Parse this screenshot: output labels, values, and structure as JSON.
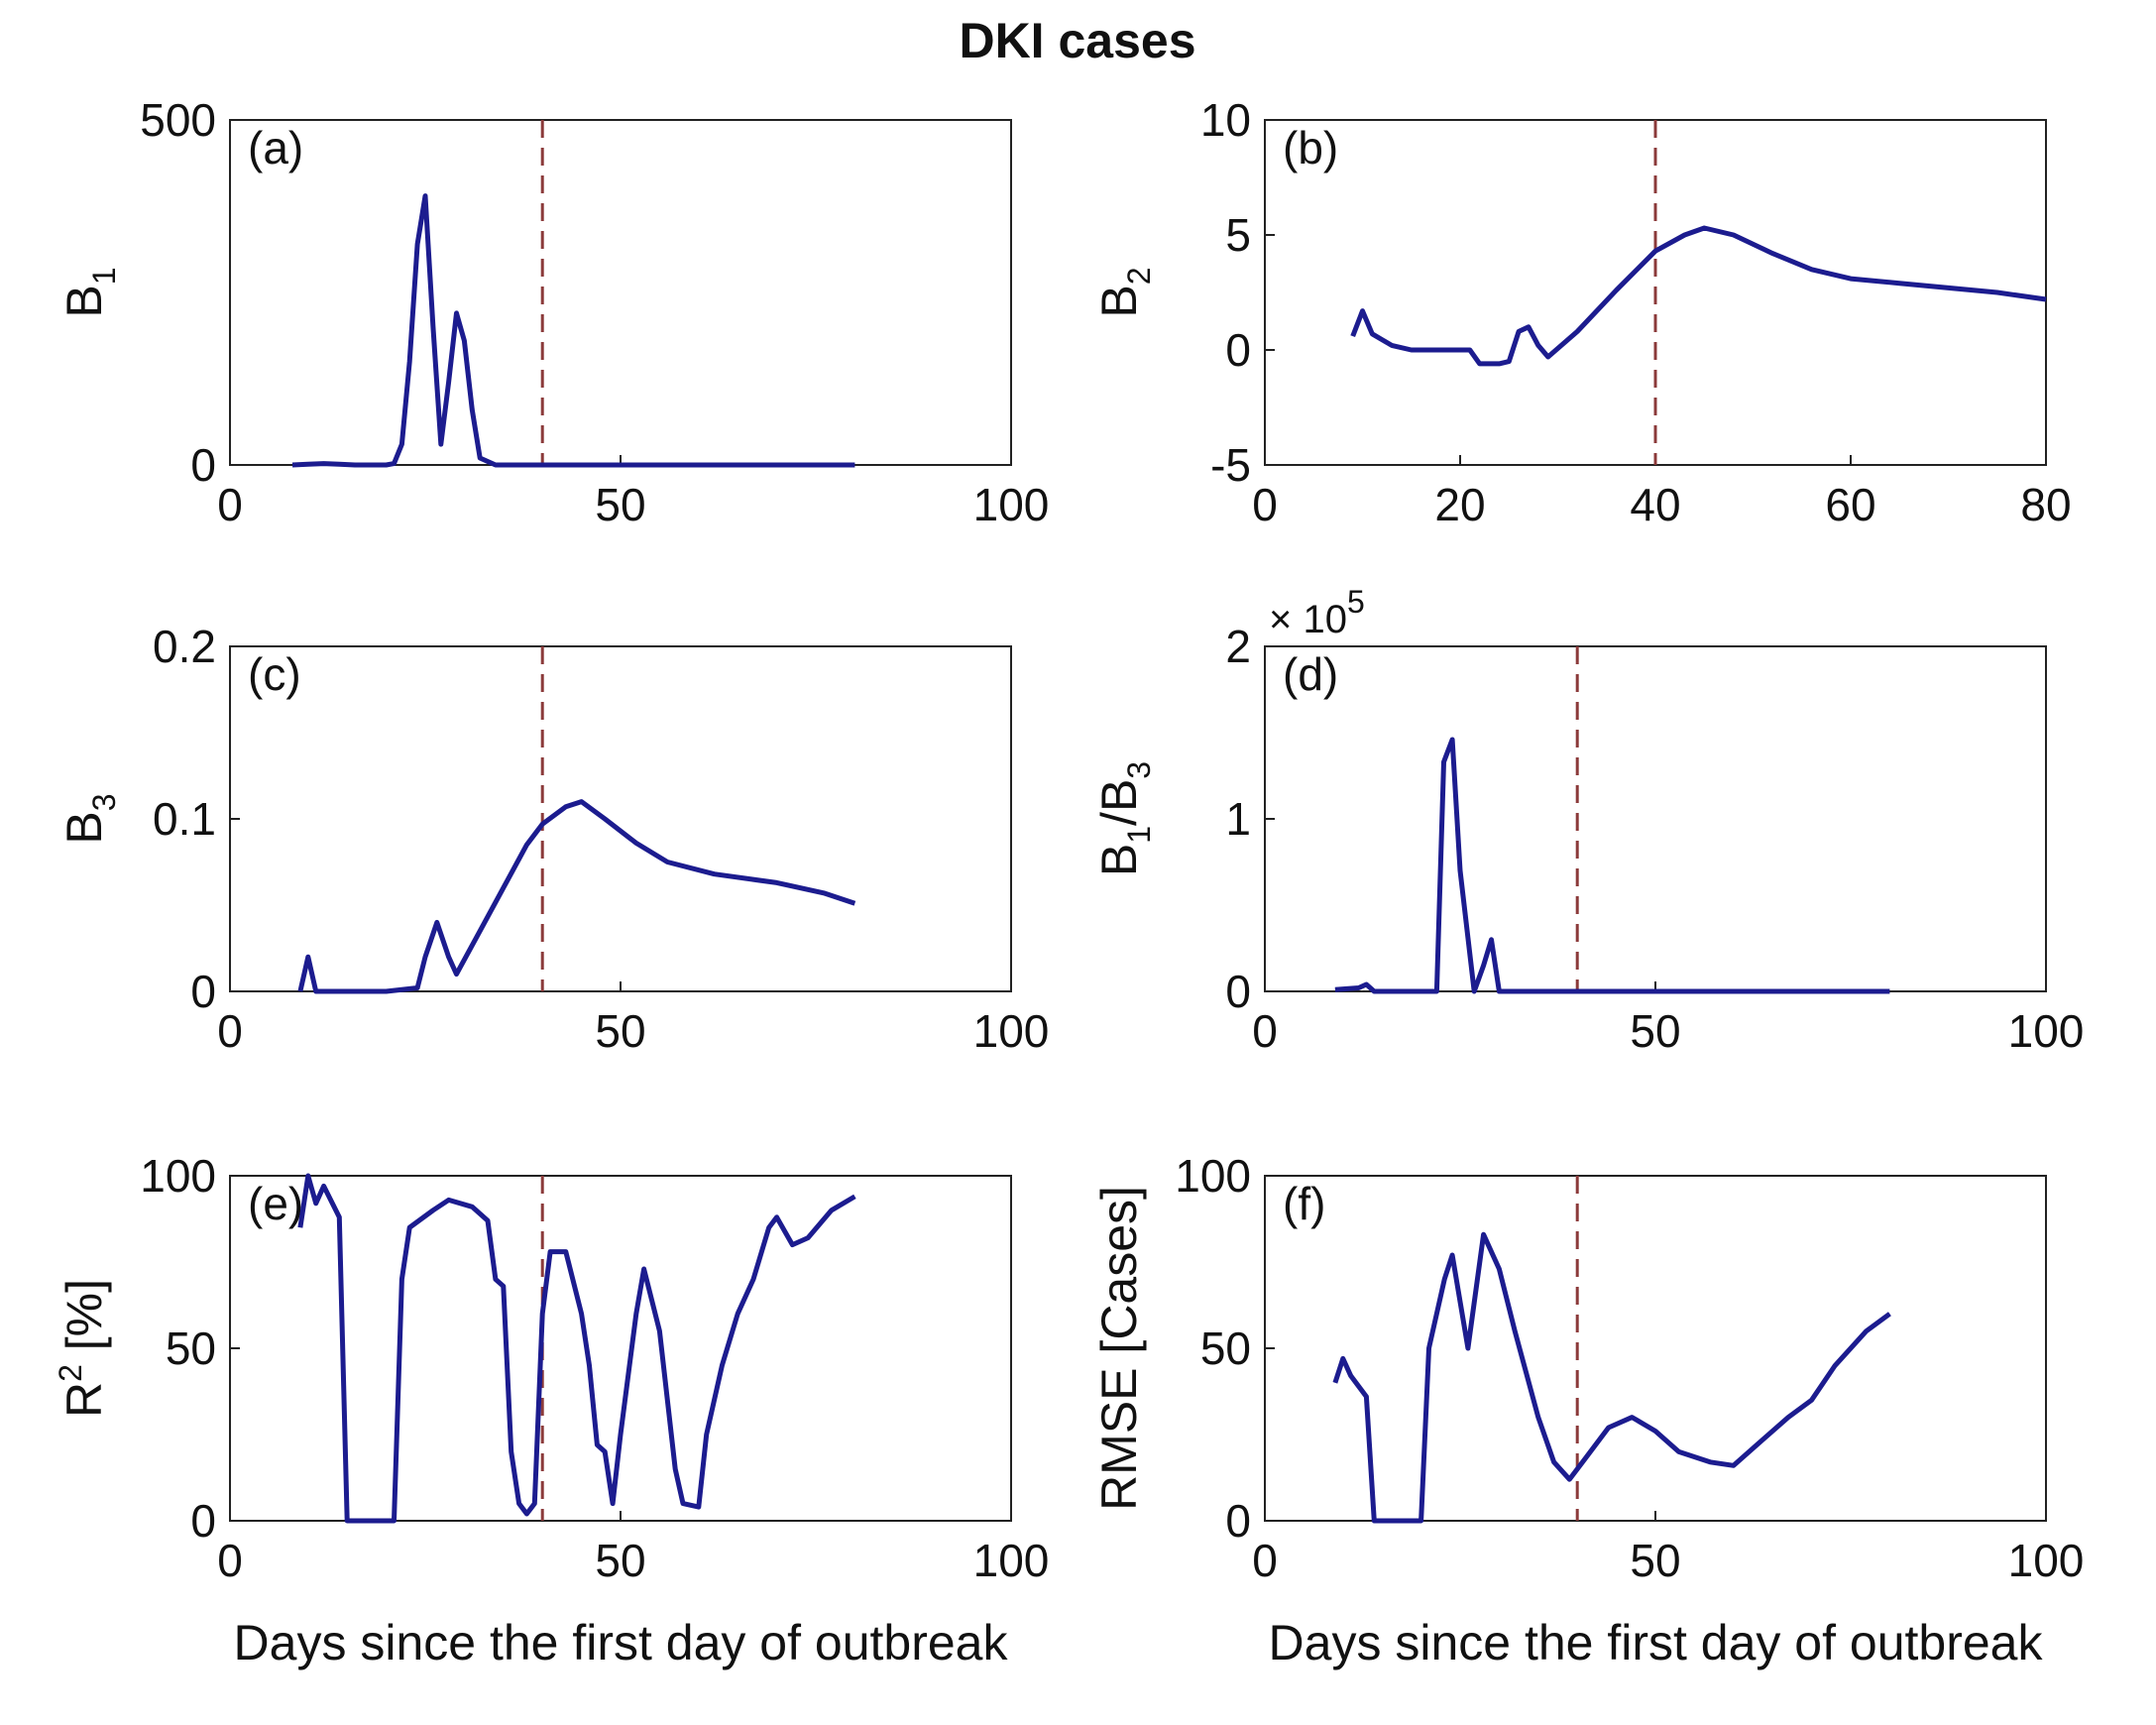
{
  "title": "DKI cases",
  "chart_data": [
    {
      "type": "line",
      "annotation": "(a)",
      "ylabel": [
        {
          "text": "B"
        },
        {
          "sub": "1"
        }
      ],
      "xlim": [
        0,
        100
      ],
      "xticks": [
        0,
        50,
        100
      ],
      "ylim": [
        0,
        500
      ],
      "yticks": [
        0,
        500
      ],
      "vline": 40,
      "series": [
        {
          "color": "#1c1c8f",
          "x": [
            8,
            10,
            12,
            14,
            16,
            18,
            20,
            21,
            22,
            23,
            24,
            25,
            26,
            27,
            28,
            29,
            30,
            31,
            32,
            34,
            40,
            50,
            60,
            70,
            80
          ],
          "values": [
            0,
            1,
            2,
            1,
            0,
            0,
            0,
            2,
            30,
            150,
            320,
            390,
            200,
            30,
            120,
            220,
            180,
            80,
            10,
            0,
            0,
            0,
            0,
            0,
            0
          ]
        }
      ]
    },
    {
      "type": "line",
      "annotation": "(b)",
      "ylabel": [
        {
          "text": "B"
        },
        {
          "sub": "2"
        }
      ],
      "xlim": [
        0,
        80
      ],
      "xticks": [
        0,
        20,
        40,
        60,
        80
      ],
      "ylim": [
        -5,
        10
      ],
      "yticks": [
        -5,
        0,
        5,
        10
      ],
      "vline": 40,
      "series": [
        {
          "color": "#1c1c8f",
          "x": [
            9,
            10,
            11,
            13,
            15,
            18,
            21,
            22,
            24,
            25,
            26,
            27,
            28,
            29,
            32,
            36,
            40,
            43,
            45,
            48,
            52,
            56,
            60,
            65,
            70,
            75,
            80
          ],
          "values": [
            0.6,
            1.7,
            0.7,
            0.2,
            0,
            0,
            0,
            -0.6,
            -0.6,
            -0.5,
            0.8,
            1.0,
            0.2,
            -0.3,
            0.8,
            2.6,
            4.3,
            5.0,
            5.3,
            5.0,
            4.2,
            3.5,
            3.1,
            2.9,
            2.7,
            2.5,
            2.2
          ]
        }
      ]
    },
    {
      "type": "line",
      "annotation": "(c)",
      "ylabel": [
        {
          "text": "B"
        },
        {
          "sub": "3"
        }
      ],
      "xlim": [
        0,
        100
      ],
      "xticks": [
        0,
        50,
        100
      ],
      "ylim": [
        0,
        0.2
      ],
      "yticks": [
        0,
        0.1,
        0.2
      ],
      "vline": 40,
      "series": [
        {
          "color": "#1c1c8f",
          "x": [
            9,
            10,
            11,
            14,
            20,
            24,
            25,
            26.5,
            28,
            29,
            32,
            35,
            38,
            40,
            43,
            45,
            48,
            52,
            56,
            62,
            70,
            76,
            80
          ],
          "values": [
            0,
            0.02,
            0,
            0,
            0,
            0.002,
            0.02,
            0.04,
            0.02,
            0.01,
            0.035,
            0.06,
            0.085,
            0.097,
            0.107,
            0.11,
            0.1,
            0.086,
            0.075,
            0.068,
            0.063,
            0.057,
            0.051
          ]
        }
      ]
    },
    {
      "type": "line",
      "annotation": "(d)",
      "ylabel": [
        {
          "text": "B"
        },
        {
          "sub": "1"
        },
        {
          "text": "/B"
        },
        {
          "sub": "3"
        }
      ],
      "exponent_label": [
        {
          "text": "× 10"
        },
        {
          "sup": "5"
        }
      ],
      "xlim": [
        0,
        100
      ],
      "xticks": [
        0,
        50,
        100
      ],
      "ylim": [
        0,
        2
      ],
      "yticks": [
        0,
        1,
        2
      ],
      "vline": 40,
      "series": [
        {
          "color": "#1c1c8f",
          "x": [
            9,
            12,
            13,
            14,
            22,
            22.9,
            24,
            25,
            26.8,
            28,
            29,
            30,
            40,
            60,
            80
          ],
          "values": [
            0.01,
            0.02,
            0.04,
            0,
            0,
            1.33,
            1.46,
            0.7,
            0,
            0.15,
            0.3,
            0,
            0,
            0,
            0
          ]
        }
      ]
    },
    {
      "type": "line",
      "annotation": "(e)",
      "ylabel": [
        {
          "text": "R"
        },
        {
          "sup": "2"
        },
        {
          "text": " [%]"
        }
      ],
      "xlabel": "Days since the first day of outbreak",
      "xlim": [
        0,
        100
      ],
      "xticks": [
        0,
        50,
        100
      ],
      "ylim": [
        0,
        100
      ],
      "yticks": [
        0,
        50,
        100
      ],
      "vline": 40,
      "series": [
        {
          "color": "#1c1c8f",
          "x": [
            9,
            10,
            11,
            12,
            14,
            15,
            21,
            22,
            23,
            26,
            28,
            31,
            33,
            34,
            35,
            36,
            37,
            38,
            39,
            40,
            41,
            43,
            45,
            46,
            47,
            48,
            49,
            50,
            52,
            53,
            55,
            57,
            58,
            60,
            61,
            63,
            65,
            67,
            69,
            70,
            72,
            74,
            77,
            80
          ],
          "values": [
            85,
            100,
            92,
            97,
            88,
            0,
            0,
            70,
            85,
            90,
            93,
            91,
            87,
            70,
            68,
            20,
            5,
            2,
            5,
            60,
            78,
            78,
            60,
            45,
            22,
            20,
            5,
            25,
            60,
            73,
            55,
            15,
            5,
            4,
            25,
            45,
            60,
            70,
            85,
            88,
            80,
            82,
            90,
            94
          ]
        }
      ]
    },
    {
      "type": "line",
      "annotation": "(f)",
      "ylabel": [
        {
          "text": "RMSE [Cases]"
        }
      ],
      "xlabel": "Days since the first day of outbreak",
      "xlim": [
        0,
        100
      ],
      "xticks": [
        0,
        50,
        100
      ],
      "ylim": [
        0,
        100
      ],
      "yticks": [
        0,
        50,
        100
      ],
      "vline": 40,
      "series": [
        {
          "color": "#1c1c8f",
          "x": [
            9,
            10,
            11,
            13,
            14,
            20,
            21,
            23,
            24,
            26,
            28,
            30,
            32,
            35,
            37,
            39,
            41,
            44,
            47,
            50,
            53,
            57,
            60,
            63,
            67,
            70,
            73,
            77,
            80
          ],
          "values": [
            40,
            47,
            42,
            36,
            0,
            0,
            50,
            70,
            77,
            50,
            83,
            73,
            55,
            30,
            17,
            12,
            18,
            27,
            30,
            26,
            20,
            17,
            16,
            22,
            30,
            35,
            45,
            55,
            60
          ]
        }
      ]
    }
  ]
}
